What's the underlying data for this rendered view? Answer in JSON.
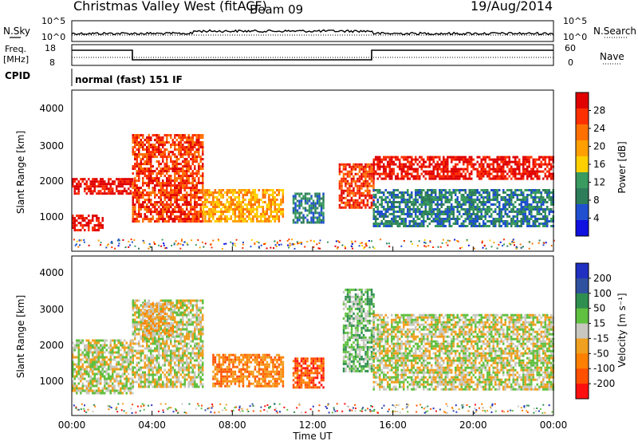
{
  "header": {
    "title": "Christmas Valley West (fitACF)",
    "beam": "Beam 09",
    "date": "19/Aug/2014"
  },
  "strips": {
    "nsky_label": "N.Sky",
    "nsearch_label": "N.Search",
    "nsky_ticks": [
      "10^5",
      "10^0"
    ],
    "freq_label_1": "Freq.",
    "freq_label_2": "[MHz]",
    "freq_ticks": [
      "18",
      "8"
    ],
    "nave_label": "Nave",
    "nave_ticks": [
      "60",
      "0"
    ],
    "cpid_label": "CPID",
    "cpid_value": "normal (fast) 151 IF"
  },
  "colors": {
    "power_scale": [
      "#1010e0",
      "#2050d0",
      "#2e7d5a",
      "#3a9a60",
      "#ffd000",
      "#ffa000",
      "#ff7000",
      "#ff3000",
      "#e00000"
    ],
    "velocity_scale": [
      "#2030c0",
      "#3050a0",
      "#2f8f50",
      "#60c040",
      "#c8c8c0",
      "#f0a020",
      "#ff8000",
      "#ff5000",
      "#ff1010"
    ]
  },
  "chart_data": [
    {
      "type": "heatmap",
      "panel": "power",
      "ylabel": "Slant Range [km]",
      "yticks": [
        "1000",
        "2000",
        "3000",
        "4000"
      ],
      "ylim": [
        200,
        4600
      ],
      "xlim": [
        0,
        24
      ],
      "colorbar_label": "Power [dB]",
      "colorbar_ticks": [
        "4",
        "8",
        "12",
        "16",
        "20",
        "24",
        "28"
      ],
      "regions": [
        {
          "t0": 0.0,
          "t1": 3.0,
          "r0": 1800,
          "r1": 2200,
          "level": 8
        },
        {
          "t0": 0.0,
          "t1": 1.5,
          "r0": 800,
          "r1": 1200,
          "level": 8
        },
        {
          "t0": 3.0,
          "t1": 6.5,
          "r0": 1000,
          "r1": 3400,
          "level": 7
        },
        {
          "t0": 6.5,
          "t1": 10.5,
          "r0": 1000,
          "r1": 1900,
          "level": 5
        },
        {
          "t0": 11.0,
          "t1": 12.5,
          "r0": 1000,
          "r1": 1800,
          "level": 2
        },
        {
          "t0": 13.3,
          "t1": 15.0,
          "r0": 1400,
          "r1": 2600,
          "level": 7
        },
        {
          "t0": 15.0,
          "t1": 24.0,
          "r0": 2200,
          "r1": 2800,
          "level": 8
        },
        {
          "t0": 15.0,
          "t1": 24.0,
          "r0": 900,
          "r1": 1900,
          "level": 2
        }
      ]
    },
    {
      "type": "heatmap",
      "panel": "velocity",
      "ylabel": "Slant Range [km]",
      "yticks": [
        "1000",
        "2000",
        "3000",
        "4000"
      ],
      "ylim": [
        200,
        4600
      ],
      "xlim": [
        0,
        24
      ],
      "colorbar_label": "Velocity [m s⁻¹]",
      "colorbar_ticks": [
        "200",
        "100",
        "50",
        "15",
        "-15",
        "-50",
        "-100",
        "-200"
      ],
      "regions": [
        {
          "t0": 0.0,
          "t1": 3.0,
          "r0": 800,
          "r1": 2300,
          "level": 4
        },
        {
          "t0": 3.0,
          "t1": 6.5,
          "r0": 1000,
          "r1": 3400,
          "level": 4
        },
        {
          "t0": 3.5,
          "t1": 5.0,
          "r0": 2400,
          "r1": 3300,
          "level": 5
        },
        {
          "t0": 7.0,
          "t1": 10.5,
          "r0": 1000,
          "r1": 1900,
          "level": 6
        },
        {
          "t0": 11.0,
          "t1": 12.5,
          "r0": 1000,
          "r1": 1800,
          "level": 7
        },
        {
          "t0": 13.5,
          "t1": 15.0,
          "r0": 1400,
          "r1": 3700,
          "level": 3
        },
        {
          "t0": 15.0,
          "t1": 24.0,
          "r0": 900,
          "r1": 3000,
          "level": 4
        }
      ]
    }
  ],
  "xaxis": {
    "ticks": [
      "00:00",
      "04:00",
      "08:00",
      "12:00",
      "16:00",
      "20:00",
      "00:00"
    ],
    "label": "Time UT"
  }
}
